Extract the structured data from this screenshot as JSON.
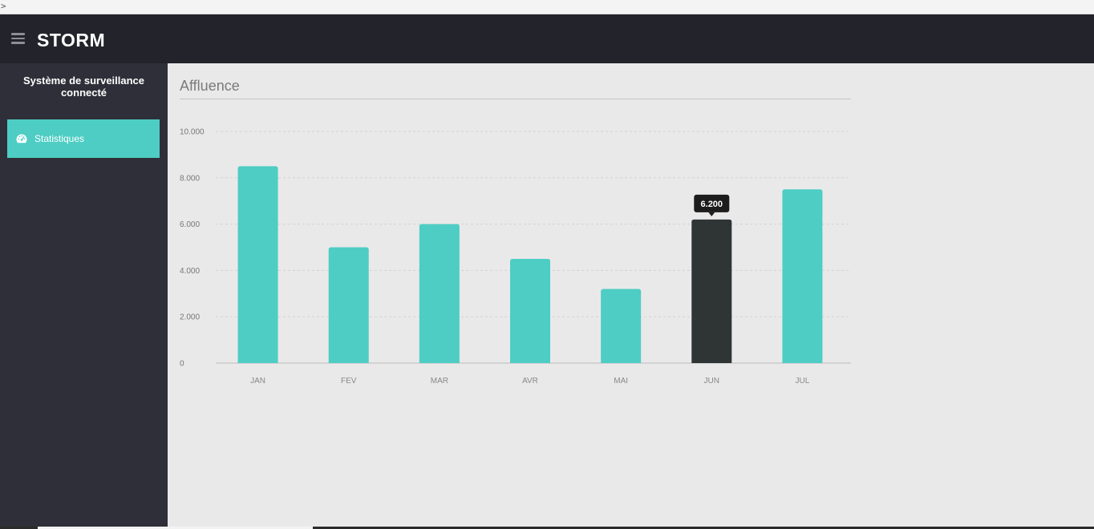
{
  "browser": {
    "caret": ">"
  },
  "header": {
    "brand": "STORM",
    "menu_icon": "hamburger-icon"
  },
  "sidebar": {
    "title": "Système de surveillance connecté",
    "items": [
      {
        "label": "Statistiques",
        "icon": "dashboard-gauge-icon",
        "active": true
      }
    ]
  },
  "colors": {
    "topbar": "#23242b",
    "sidebar": "#2e2f38",
    "accent": "#4ecdc4",
    "highlight_bar": "#2f3435",
    "content_bg": "#e9e9e9"
  },
  "main": {
    "section_title": "Affluence"
  },
  "chart_data": {
    "type": "bar",
    "categories": [
      "JAN",
      "FEV",
      "MAR",
      "AVR",
      "MAI",
      "JUN",
      "JUL"
    ],
    "values": [
      8500,
      5000,
      6000,
      4500,
      3200,
      6200,
      7500
    ],
    "ylim": [
      0,
      10000
    ],
    "yticks": [
      0,
      2000,
      4000,
      6000,
      8000,
      10000
    ],
    "ytick_labels": [
      "0",
      "2.000",
      "4.000",
      "6.000",
      "8.000",
      "10.000"
    ],
    "grid": true,
    "highlighted_category": "JUN",
    "tooltip": "6.200"
  }
}
